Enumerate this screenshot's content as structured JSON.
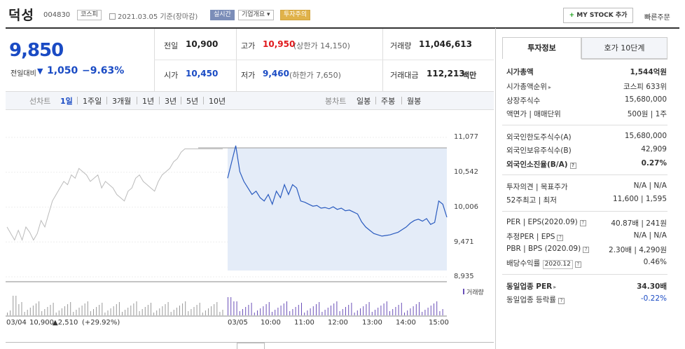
{
  "header": {
    "name": "덕성",
    "code": "004830",
    "market": "코스피",
    "date": "2021.03.05 기준(장마감)",
    "realtime_tag": "실시간",
    "overview_tag": "기업개요",
    "warning_tag": "투자주의",
    "mystock_label": "MY STOCK 추가",
    "quickorder_label": "빠른주문"
  },
  "price": {
    "current": "9,850",
    "change_label": "전일대비",
    "change": "1,050",
    "change_pct": "−9.63%",
    "prev_close_label": "전일",
    "prev_close": "10,900",
    "open_label": "시가",
    "open": "10,450",
    "high_label": "고가",
    "high": "10,950",
    "upper_limit": "(상한가 14,150)",
    "low_label": "저가",
    "low": "9,460",
    "lower_limit": "(하한가 7,650)",
    "volume_label": "거래량",
    "volume": "11,046,613",
    "amount_label": "거래대금",
    "amount": "112,213",
    "amount_unit": "백만"
  },
  "periods": {
    "line_label": "선차트",
    "line_tabs": [
      "1일",
      "1주일",
      "3개월",
      "1년",
      "3년",
      "5년",
      "10년"
    ],
    "candle_label": "봉차트",
    "candle_tabs": [
      "일봉",
      "주봉",
      "월봉"
    ],
    "active": "1일"
  },
  "chart_data": {
    "type": "line",
    "y_ticks": [
      "11,077",
      "10,542",
      "10,006",
      "9,471",
      "8,935"
    ],
    "ylim": [
      8935,
      11077
    ],
    "x_labels": [
      "03/04",
      "03/05",
      "10:00",
      "11:00",
      "12:00",
      "13:00",
      "14:00",
      "15:00"
    ],
    "volume_label": "거래량",
    "prev_day_summary": {
      "date": "03/04",
      "close": "10,900",
      "change": "▲2,510",
      "pct": "(+29.92%)"
    },
    "series": [
      {
        "values_prev_day": [
          9700,
          9600,
          9500,
          9650,
          9500,
          9700,
          9620,
          9500,
          9600,
          9800,
          9700,
          9900,
          10100,
          10200,
          10300,
          10400,
          10350,
          10500,
          10450,
          10600,
          10550,
          10500,
          10400,
          10450,
          10500,
          10300,
          10400,
          10350,
          10300,
          10200,
          10150,
          10100,
          10250,
          10300,
          10450,
          10500,
          10400,
          10350,
          10300,
          10250,
          10400,
          10500,
          10550,
          10600,
          10700,
          10750,
          10850,
          10900,
          10900,
          10900,
          10900,
          10900,
          10900,
          10900,
          10900,
          10900,
          10900,
          10900
        ]
      },
      {
        "values_today": [
          10450,
          10700,
          10950,
          10550,
          10400,
          10300,
          10200,
          10250,
          10150,
          10100,
          10200,
          10050,
          10250,
          10150,
          10350,
          10200,
          10350,
          10300,
          10100,
          10080,
          10050,
          10020,
          10030,
          9990,
          10000,
          9980,
          10010,
          9970,
          9990,
          9950,
          9960,
          9930,
          9900,
          9780,
          9700,
          9650,
          9600,
          9580,
          9560,
          9570,
          9580,
          9600,
          9620,
          9660,
          9700,
          9760,
          9800,
          9820,
          9790,
          9830,
          9740,
          9770,
          10100,
          10050,
          9850
        ]
      }
    ]
  },
  "info": {
    "tab_active": "투자정보",
    "tab_other": "호가 10단계",
    "market_cap_label": "시가총액",
    "market_cap": "1,544억원",
    "cap_rank_label": "시가총액순위",
    "cap_rank": "코스피 633위",
    "shares_label": "상장주식수",
    "shares": "15,680,000",
    "par_label": "액면가 | 매매단위",
    "par": "500원 | 1주",
    "foreign_limit_label": "외국인한도주식수(A)",
    "foreign_limit": "15,680,000",
    "foreign_hold_label": "외국인보유주식수(B)",
    "foreign_hold": "42,909",
    "foreign_ratio_label": "외국인소진율(B/A)",
    "foreign_ratio": "0.27%",
    "opinion_label": "투자의견 | 목표주가",
    "opinion": "N/A | N/A",
    "w52_label": "52주최고 | 최저",
    "w52": "11,600 | 1,595",
    "per_label": "PER | EPS(2020.09)",
    "per": "40.87배 | 241원",
    "est_per_label": "추정PER | EPS",
    "est_per": "N/A | N/A",
    "pbr_label": "PBR | BPS (2020.09)",
    "pbr": "2.30배 | 4,290원",
    "div_label": "배당수익률",
    "div_date": "2020.12",
    "div": "0.46%",
    "ind_per_label": "동일업종 PER",
    "ind_per": "34.30배",
    "ind_chg_label": "동일업종 등락률",
    "ind_chg": "-0.22%"
  }
}
